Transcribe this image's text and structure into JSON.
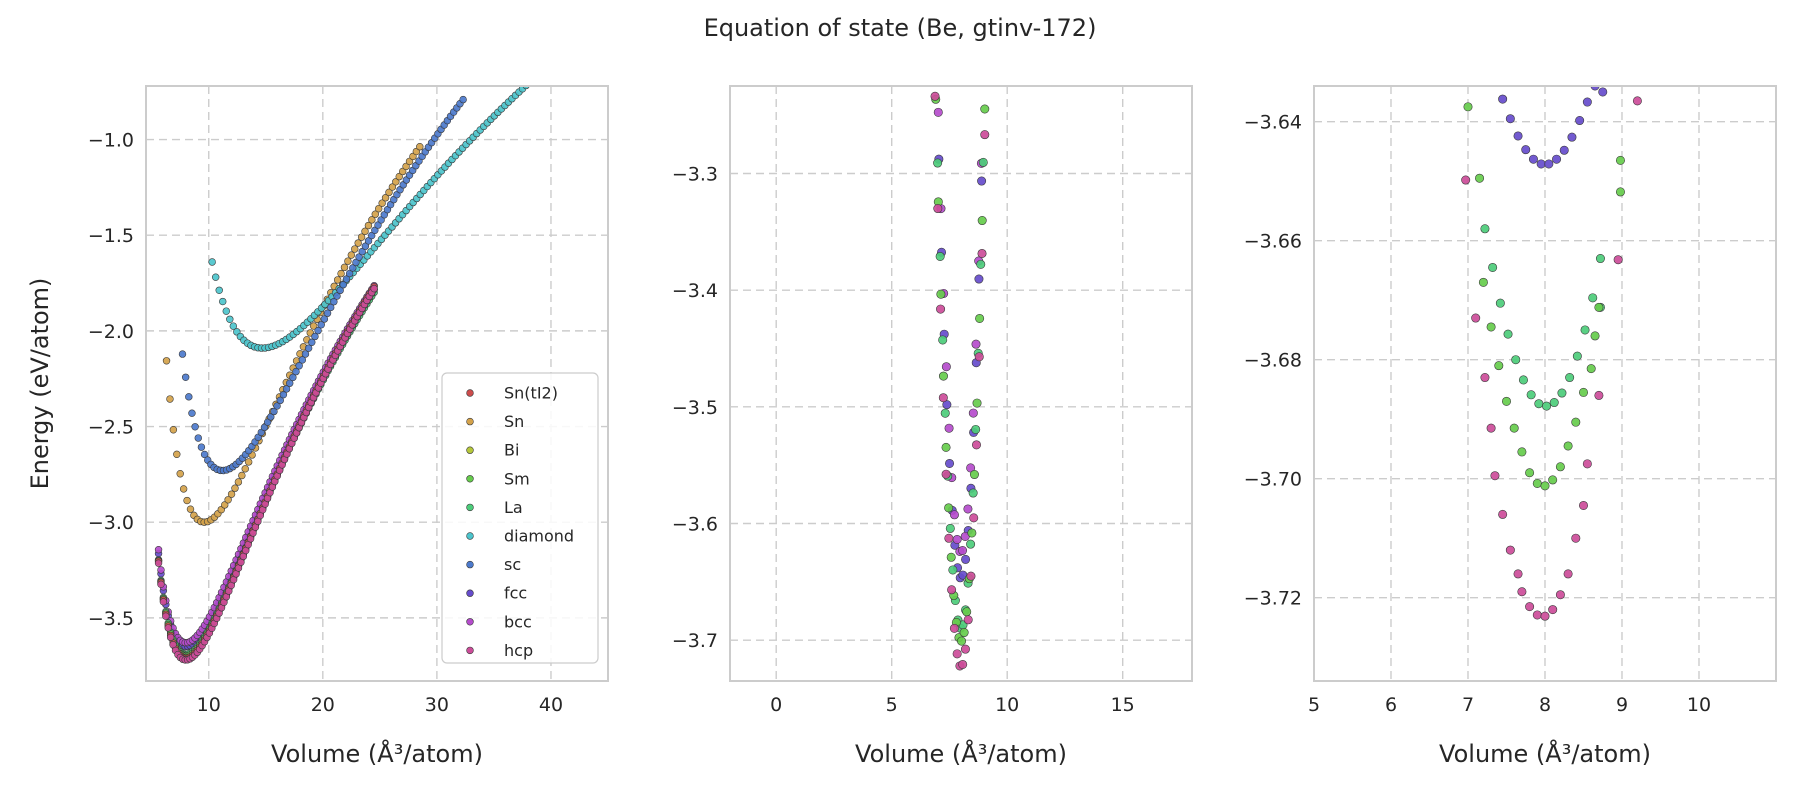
{
  "figure": {
    "title": "Equation of state (Be, gtinv-172)"
  },
  "legend_placement": "lower-right",
  "structures": [
    {
      "name": "Sn(tI2)",
      "color": "#cc4c4c"
    },
    {
      "name": "Sn",
      "color": "#d4a24a"
    },
    {
      "name": "Bi",
      "color": "#b5c73a"
    },
    {
      "name": "Sm",
      "color": "#66cc4c"
    },
    {
      "name": "La",
      "color": "#4ccc7a"
    },
    {
      "name": "diamond",
      "color": "#4cc4cc"
    },
    {
      "name": "sc",
      "color": "#4c7acc"
    },
    {
      "name": "fcc",
      "color": "#664ccc"
    },
    {
      "name": "bcc",
      "color": "#b54ccc"
    },
    {
      "name": "hcp",
      "color": "#cc4c99"
    }
  ],
  "chart_data": [
    {
      "type": "scatter",
      "panel": "full",
      "title": "",
      "xlabel": "Volume (Å³/atom)",
      "ylabel": "Energy (eV/atom)",
      "xlim": [
        4.5,
        45
      ],
      "ylim": [
        -3.83,
        -0.72
      ],
      "xticks": [
        10,
        20,
        30,
        40
      ],
      "yticks": [
        -1.0,
        -1.5,
        -2.0,
        -2.5,
        -3.0,
        -3.5
      ],
      "ytick_labels": [
        "−1.0",
        "−1.5",
        "−2.0",
        "−2.5",
        "−3.0",
        "−3.5"
      ],
      "grid": true,
      "legend": "lower-right",
      "series": [
        {
          "name": "Sn",
          "curve": {
            "E0": -3.0,
            "V0": 9.6,
            "B0": 0.72,
            "Bp": 4.2,
            "vmin": 6.3,
            "vmax": 28.5,
            "n": 75
          }
        },
        {
          "name": "diamond",
          "curve": {
            "E0": -2.09,
            "V0": 14.7,
            "B0": 0.38,
            "Bp": 4.0,
            "vmin": 10.3,
            "vmax": 44.0,
            "n": 110
          }
        },
        {
          "name": "sc",
          "curve": {
            "E0": -2.73,
            "V0": 11.2,
            "B0": 0.6,
            "Bp": 4.0,
            "vmin": 7.7,
            "vmax": 32.3,
            "n": 90
          }
        },
        {
          "name": "fcc",
          "curve": {
            "E0": -3.65,
            "V0": 8.0,
            "B0": 0.75,
            "Bp": 4.0,
            "vmin": 5.6,
            "vmax": 24.5,
            "n": 90
          }
        },
        {
          "name": "bcc",
          "curve": {
            "E0": -3.63,
            "V0": 8.0,
            "B0": 0.75,
            "Bp": 4.0,
            "vmin": 5.6,
            "vmax": 24.5,
            "n": 90
          }
        },
        {
          "name": "La",
          "curve": {
            "E0": -3.69,
            "V0": 8.0,
            "B0": 0.76,
            "Bp": 4.0,
            "vmin": 5.6,
            "vmax": 24.5,
            "n": 90
          }
        },
        {
          "name": "Sm",
          "curve": {
            "E0": -3.7,
            "V0": 8.0,
            "B0": 0.77,
            "Bp": 4.0,
            "vmin": 5.6,
            "vmax": 24.5,
            "n": 90
          }
        },
        {
          "name": "Sn(tI2)",
          "curve": {
            "E0": -3.71,
            "V0": 8.0,
            "B0": 0.78,
            "Bp": 4.0,
            "vmin": 5.6,
            "vmax": 24.5,
            "n": 90
          }
        },
        {
          "name": "hcp",
          "curve": {
            "E0": -3.72,
            "V0": 8.0,
            "B0": 0.78,
            "Bp": 4.0,
            "vmin": 5.6,
            "vmax": 24.5,
            "n": 90
          }
        }
      ]
    },
    {
      "type": "scatter",
      "panel": "zoom-1",
      "title": "",
      "xlabel": "Volume (Å³/atom)",
      "ylabel": "",
      "xlim": [
        -2.0,
        18.0
      ],
      "ylim": [
        -3.735,
        -3.225
      ],
      "xticks": [
        0,
        5,
        10,
        15
      ],
      "yticks": [
        -3.3,
        -3.4,
        -3.5,
        -3.6,
        -3.7
      ],
      "ytick_labels": [
        "−3.3",
        "−3.4",
        "−3.5",
        "−3.6",
        "−3.7"
      ],
      "grid": true,
      "series": [
        {
          "name": "fcc",
          "curve": {
            "E0": -3.647,
            "V0": 8.0,
            "k": 0.41,
            "c": 0.02,
            "vmin": 6.0,
            "vmax": 11.9,
            "n": 52
          }
        },
        {
          "name": "bcc",
          "curve": {
            "E0": -3.625,
            "V0": 8.0,
            "k": 0.41,
            "c": 0.02,
            "vmin": 5.85,
            "vmax": 11.8,
            "n": 52
          }
        },
        {
          "name": "La",
          "curve": {
            "E0": -3.69,
            "V0": 8.0,
            "k": 0.41,
            "c": 0.02,
            "vmin": 6.0,
            "vmax": 11.6,
            "n": 52
          }
        },
        {
          "name": "Sm",
          "curve": {
            "E0": -3.701,
            "V0": 8.0,
            "k": 0.41,
            "c": 0.02,
            "vmin": 5.9,
            "vmax": 11.6,
            "n": 52
          }
        },
        {
          "name": "hcp",
          "curve": {
            "E0": -3.723,
            "V0": 8.0,
            "k": 0.41,
            "c": 0.02,
            "vmin": 5.8,
            "vmax": 11.9,
            "n": 52
          }
        }
      ]
    },
    {
      "type": "scatter",
      "panel": "zoom-2",
      "title": "",
      "xlabel": "Volume (Å³/atom)",
      "ylabel": "",
      "xlim": [
        5.0,
        11.0
      ],
      "ylim": [
        -3.734,
        -3.634
      ],
      "xticks": [
        5,
        6,
        7,
        8,
        9,
        10
      ],
      "yticks": [
        -3.64,
        -3.66,
        -3.68,
        -3.7,
        -3.72
      ],
      "ytick_labels": [
        "−3.64",
        "−3.66",
        "−3.68",
        "−3.70",
        "−3.72"
      ],
      "grid": true,
      "series": [
        {
          "name": "fcc",
          "points": [
            [
              7.45,
              -3.6362
            ],
            [
              7.55,
              -3.6395
            ],
            [
              7.65,
              -3.6424
            ],
            [
              7.75,
              -3.6447
            ],
            [
              7.85,
              -3.6463
            ],
            [
              7.95,
              -3.6471
            ],
            [
              8.05,
              -3.6471
            ],
            [
              8.15,
              -3.6463
            ],
            [
              8.25,
              -3.6448
            ],
            [
              8.35,
              -3.6426
            ],
            [
              8.45,
              -3.6398
            ],
            [
              8.55,
              -3.6367
            ],
            [
              8.65,
              -3.634
            ],
            [
              8.75,
              -3.635
            ]
          ]
        },
        {
          "name": "La",
          "points": [
            [
              7.22,
              -3.658
            ],
            [
              7.32,
              -3.6645
            ],
            [
              7.42,
              -3.6705
            ],
            [
              7.52,
              -3.6757
            ],
            [
              7.62,
              -3.68
            ],
            [
              7.72,
              -3.6834
            ],
            [
              7.82,
              -3.6859
            ],
            [
              7.92,
              -3.6874
            ],
            [
              8.02,
              -3.6878
            ],
            [
              8.12,
              -3.6872
            ],
            [
              8.22,
              -3.6856
            ],
            [
              8.32,
              -3.683
            ],
            [
              8.42,
              -3.6794
            ],
            [
              8.52,
              -3.675
            ],
            [
              8.62,
              -3.6696
            ],
            [
              8.72,
              -3.663
            ],
            [
              8.72,
              -3.6712
            ]
          ]
        },
        {
          "name": "Sm",
          "points": [
            [
              7.0,
              -3.6375
            ],
            [
              7.15,
              -3.6495
            ],
            [
              7.2,
              -3.667
            ],
            [
              7.3,
              -3.6745
            ],
            [
              7.4,
              -3.681
            ],
            [
              7.5,
              -3.687
            ],
            [
              7.6,
              -3.6915
            ],
            [
              7.7,
              -3.6955
            ],
            [
              7.8,
              -3.699
            ],
            [
              7.9,
              -3.7008
            ],
            [
              8.0,
              -3.7012
            ],
            [
              8.1,
              -3.7002
            ],
            [
              8.2,
              -3.698
            ],
            [
              8.3,
              -3.6945
            ],
            [
              8.4,
              -3.6905
            ],
            [
              8.5,
              -3.6855
            ],
            [
              8.6,
              -3.6815
            ],
            [
              8.65,
              -3.676
            ],
            [
              8.7,
              -3.6712
            ],
            [
              8.98,
              -3.6465
            ],
            [
              8.98,
              -3.6518
            ]
          ]
        },
        {
          "name": "hcp",
          "points": [
            [
              6.97,
              -3.6498
            ],
            [
              7.1,
              -3.673
            ],
            [
              7.22,
              -3.683
            ],
            [
              7.3,
              -3.6915
            ],
            [
              7.35,
              -3.6995
            ],
            [
              7.45,
              -3.706
            ],
            [
              7.55,
              -3.712
            ],
            [
              7.65,
              -3.716
            ],
            [
              7.7,
              -3.719
            ],
            [
              7.8,
              -3.7215
            ],
            [
              7.9,
              -3.7229
            ],
            [
              8.0,
              -3.7231
            ],
            [
              8.1,
              -3.722
            ],
            [
              8.2,
              -3.7195
            ],
            [
              8.3,
              -3.716
            ],
            [
              8.4,
              -3.71
            ],
            [
              8.5,
              -3.7045
            ],
            [
              8.55,
              -3.6975
            ],
            [
              8.7,
              -3.686
            ],
            [
              8.95,
              -3.6632
            ],
            [
              9.2,
              -3.6365
            ]
          ]
        }
      ]
    }
  ]
}
